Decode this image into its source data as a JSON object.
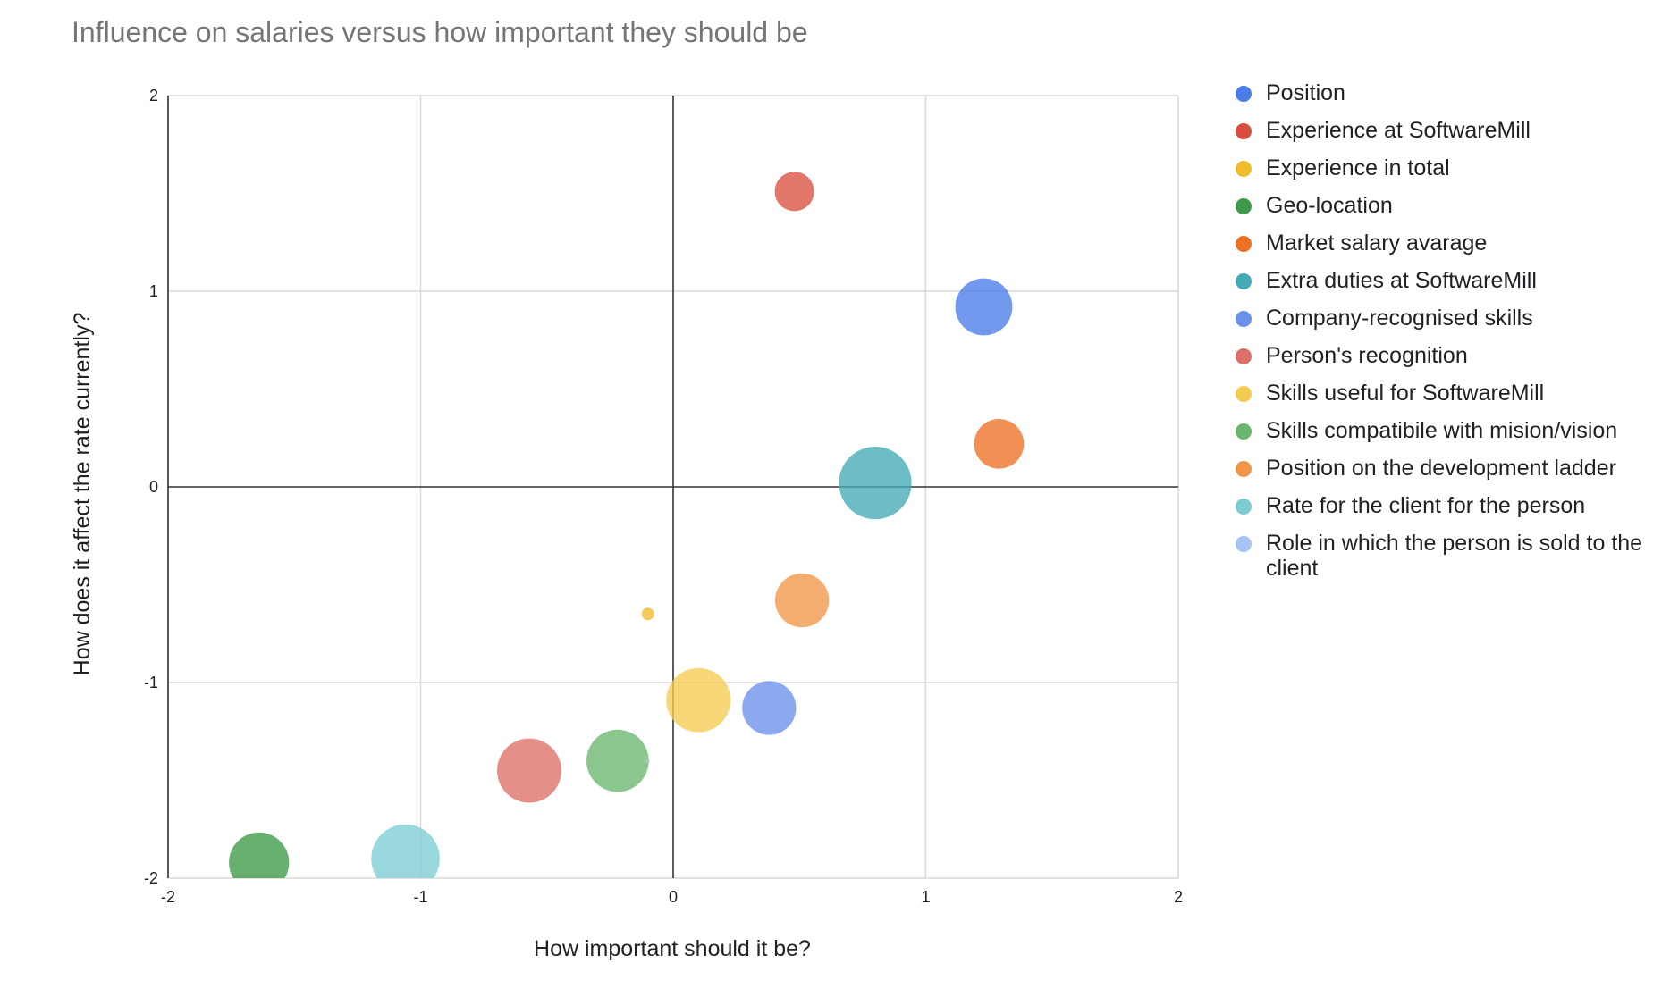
{
  "chart_data": {
    "type": "scatter",
    "title": "Influence on salaries versus how important they should be",
    "xlabel": "How important should it be?",
    "ylabel": "How does it affect the rate currently?",
    "xlim": [
      -2,
      2
    ],
    "ylim": [
      -2,
      2
    ],
    "x_ticks": [
      "-2",
      "-1",
      "0",
      "1",
      "2"
    ],
    "y_ticks": [
      "2",
      "1",
      "0",
      "-1",
      "-2"
    ],
    "grid": true,
    "legend_position": "right",
    "series": [
      {
        "name": "Position",
        "color": "#4a7ce8",
        "x": 1.23,
        "y": 0.92,
        "size": 0.55
      },
      {
        "name": "Experience at SoftwareMill",
        "color": "#d94f3f",
        "x": 0.48,
        "y": 1.51,
        "size": 0.38
      },
      {
        "name": "Experience in total",
        "color": "#f2bb2c",
        "x": -0.1,
        "y": -0.65,
        "size": 0.12
      },
      {
        "name": "Geo-location",
        "color": "#3e9a48",
        "x": -1.64,
        "y": -1.92,
        "size": 0.58
      },
      {
        "name": "Market salary avarage",
        "color": "#ed7124",
        "x": 1.29,
        "y": 0.22,
        "size": 0.48
      },
      {
        "name": "Extra duties at SoftwareMill",
        "color": "#43abb6",
        "x": 0.8,
        "y": 0.02,
        "size": 0.7
      },
      {
        "name": "Company-recognised skills",
        "color": "#6b91ea",
        "x": 0.38,
        "y": -1.13,
        "size": 0.52
      },
      {
        "name": "Person's recognition",
        "color": "#dc6f67",
        "x": -0.57,
        "y": -1.45,
        "size": 0.62
      },
      {
        "name": "Skills useful for SoftwareMill",
        "color": "#f5cc52",
        "x": 0.1,
        "y": -1.09,
        "size": 0.62
      },
      {
        "name": "Skills compatibile with mision/vision",
        "color": "#6ab66f",
        "x": -0.22,
        "y": -1.4,
        "size": 0.6
      },
      {
        "name": "Position on the development ladder",
        "color": "#f19549",
        "x": 0.51,
        "y": -0.58,
        "size": 0.52
      },
      {
        "name": "Rate for the client for the person",
        "color": "#7ccdd3",
        "x": -1.06,
        "y": -1.9,
        "size": 0.66
      },
      {
        "name": "Role in which the person is sold to the client",
        "color": "#a6c4f5",
        "x": -0.1,
        "y": -1.4,
        "size": 0.03
      }
    ]
  }
}
